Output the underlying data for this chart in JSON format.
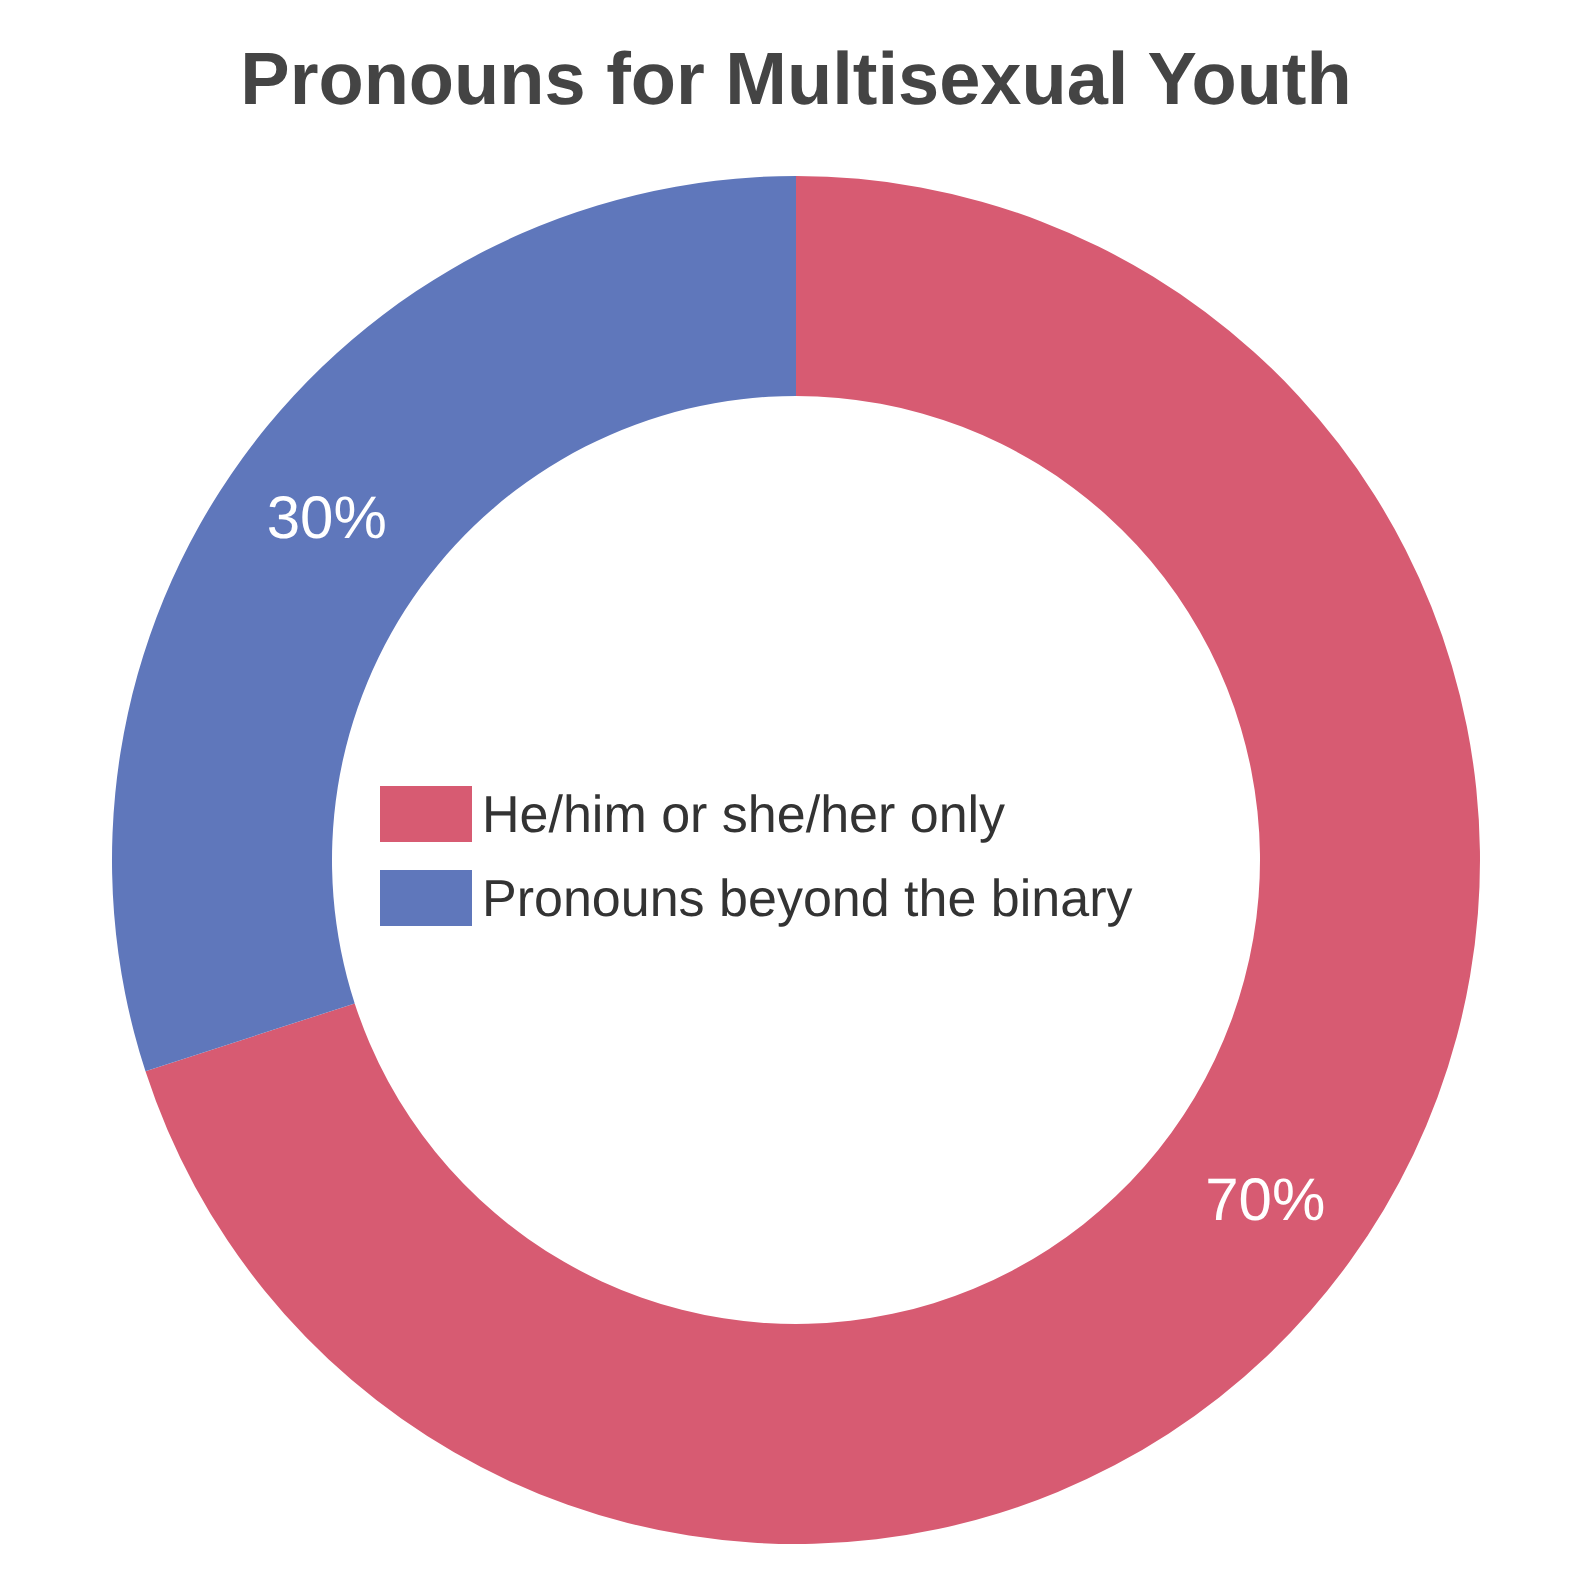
{
  "chart_data": {
    "type": "donut",
    "title": "Pronouns for Multisexual Youth",
    "categories": [
      "He/him or she/her only",
      "Pronouns beyond the binary"
    ],
    "values": [
      70,
      30
    ],
    "colors": [
      "#d75b72",
      "#5f77bb"
    ],
    "value_labels": [
      "70%",
      "30%"
    ],
    "legend": "center"
  }
}
